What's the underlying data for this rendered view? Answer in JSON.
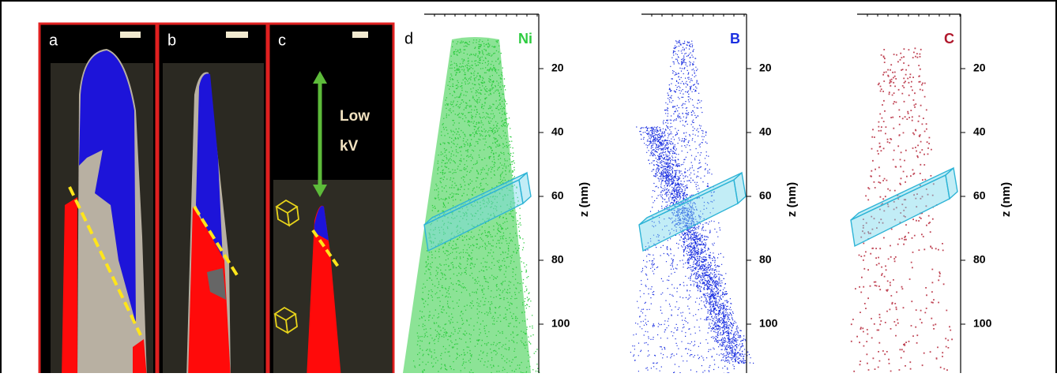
{
  "panels": [
    {
      "label": "a"
    },
    {
      "label": "b"
    },
    {
      "label": "c"
    }
  ],
  "annotation": [
    "Low",
    "kV"
  ],
  "atom_panel_label": "d",
  "atom_maps": [
    {
      "element": "Ni",
      "color": "#2ecc40",
      "axis_label": "z (nm)",
      "ticks": [
        20,
        40,
        60,
        80,
        100
      ]
    },
    {
      "element": "B",
      "color": "#1a2fe0",
      "axis_label": "z (nm)",
      "ticks": [
        20,
        40,
        60,
        80,
        100
      ]
    },
    {
      "element": "C",
      "color": "#b0182c",
      "axis_label": "z (nm)",
      "ticks": [
        20,
        40,
        60,
        80,
        100
      ]
    }
  ]
}
